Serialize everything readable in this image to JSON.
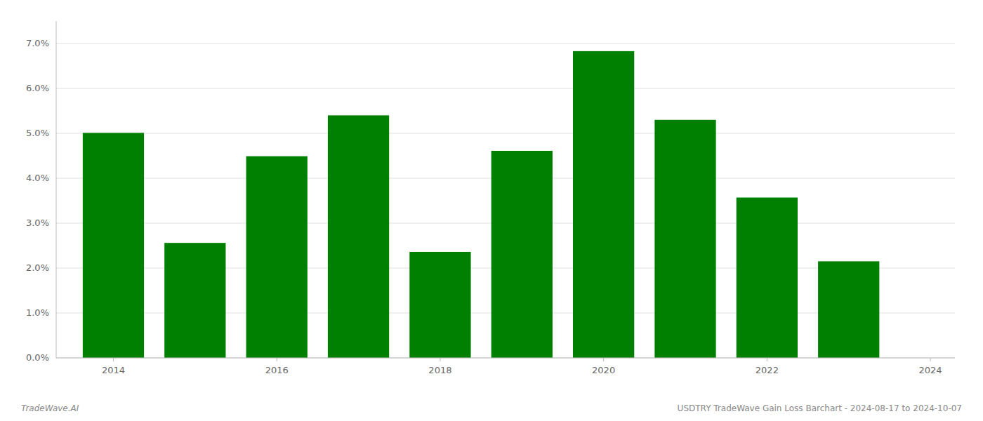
{
  "chart_data": {
    "type": "bar",
    "x": [
      2014,
      2015,
      2016,
      2017,
      2018,
      2019,
      2020,
      2021,
      2022,
      2023
    ],
    "values": [
      0.0501,
      0.0256,
      0.0449,
      0.054,
      0.0236,
      0.0461,
      0.0683,
      0.053,
      0.0357,
      0.0215
    ],
    "color": "#008000",
    "xlim": [
      2013.3,
      2024.3
    ],
    "xticks": [
      2014,
      2016,
      2018,
      2020,
      2022,
      2024
    ],
    "ylim": [
      0,
      0.075
    ],
    "yticks": [
      {
        "value": 0.0,
        "label": "0.0%"
      },
      {
        "value": 0.01,
        "label": "1.0%"
      },
      {
        "value": 0.02,
        "label": "2.0%"
      },
      {
        "value": 0.03,
        "label": "3.0%"
      },
      {
        "value": 0.04,
        "label": "4.0%"
      },
      {
        "value": 0.05,
        "label": "5.0%"
      },
      {
        "value": 0.06,
        "label": "6.0%"
      },
      {
        "value": 0.07,
        "label": "7.0%"
      }
    ],
    "grid": true,
    "annotations": [
      "TradeWave.AI",
      "USDTRY TradeWave Gain Loss Barchart - 2024-08-17 to 2024-10-07"
    ]
  }
}
